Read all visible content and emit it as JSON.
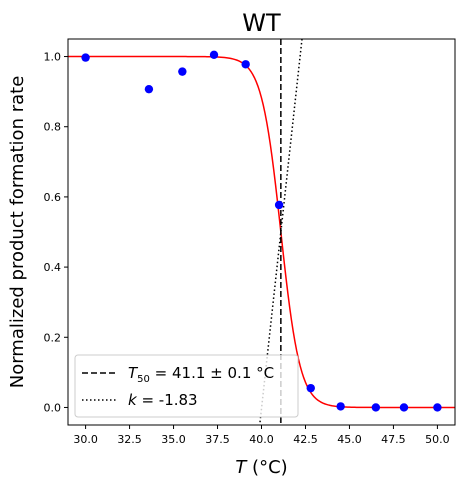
{
  "chart_data": {
    "type": "scatter",
    "title": "WT",
    "xlabel_symbol": "T",
    "xlabel_unit": "(°C)",
    "ylabel": "Normalized product formation rate",
    "xlim": [
      29.0,
      51.0
    ],
    "ylim": [
      -0.05,
      1.05
    ],
    "xticks": [
      "30.0",
      "32.5",
      "35.0",
      "37.5",
      "40.0",
      "42.5",
      "45.0",
      "47.5",
      "50.0"
    ],
    "yticks": [
      "0.0",
      "0.2",
      "0.4",
      "0.6",
      "0.8",
      "1.0"
    ],
    "grid": false,
    "legend_position": "lower-left",
    "points": {
      "x": [
        30.0,
        33.6,
        35.5,
        37.3,
        39.1,
        41.0,
        42.8,
        44.5,
        46.5,
        48.1,
        50.0
      ],
      "y": [
        0.997,
        0.907,
        0.957,
        1.005,
        0.978,
        0.577,
        0.055,
        0.003,
        0.0,
        0.0,
        0.0
      ],
      "color": "#0000ff"
    },
    "fit": {
      "t50": 41.1,
      "k": -1.83,
      "color": "#ff0000"
    },
    "legend": [
      {
        "style": "dashed",
        "sym": "T",
        "sub": "50",
        "text": " = 41.1 ± 0.1 °C"
      },
      {
        "style": "dotted",
        "sym": "k",
        "sub": "",
        "text": " = -1.83"
      }
    ]
  }
}
